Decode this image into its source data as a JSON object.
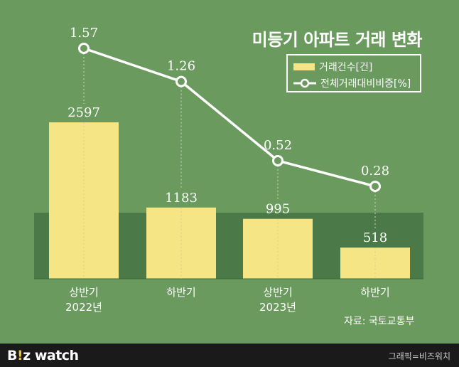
{
  "title": "미등기 아파트 거래 변화",
  "legend": {
    "bar_label": "거래건수[건]",
    "line_label": "전체거래대비비중[%]"
  },
  "source": "자료: 국토교통부",
  "footer": {
    "logo_b": "B",
    "logo_dot": "!",
    "logo_z": "z",
    "logo_watch": " watch",
    "credit": "그래픽=비즈워치"
  },
  "colors": {
    "background": "#6a9a5e",
    "band": "#4b7a48",
    "bar": "#f5e585",
    "line": "#ffffff"
  },
  "chart_data": {
    "type": "bar",
    "categories": [
      [
        "상반기",
        "2022년"
      ],
      [
        "하반기",
        ""
      ],
      [
        "상반기",
        "2023년"
      ],
      [
        "하반기",
        ""
      ]
    ],
    "series": [
      {
        "name": "거래건수[건]",
        "type": "bar",
        "values": [
          2597,
          1183,
          995,
          518
        ]
      },
      {
        "name": "전체거래대비비중[%]",
        "type": "line",
        "values": [
          1.57,
          1.26,
          0.52,
          0.28
        ]
      }
    ],
    "bar_labels": [
      "2597",
      "1183",
      "995",
      "518"
    ],
    "line_labels": [
      "1.57",
      "1.26",
      "0.52",
      "0.28"
    ]
  }
}
